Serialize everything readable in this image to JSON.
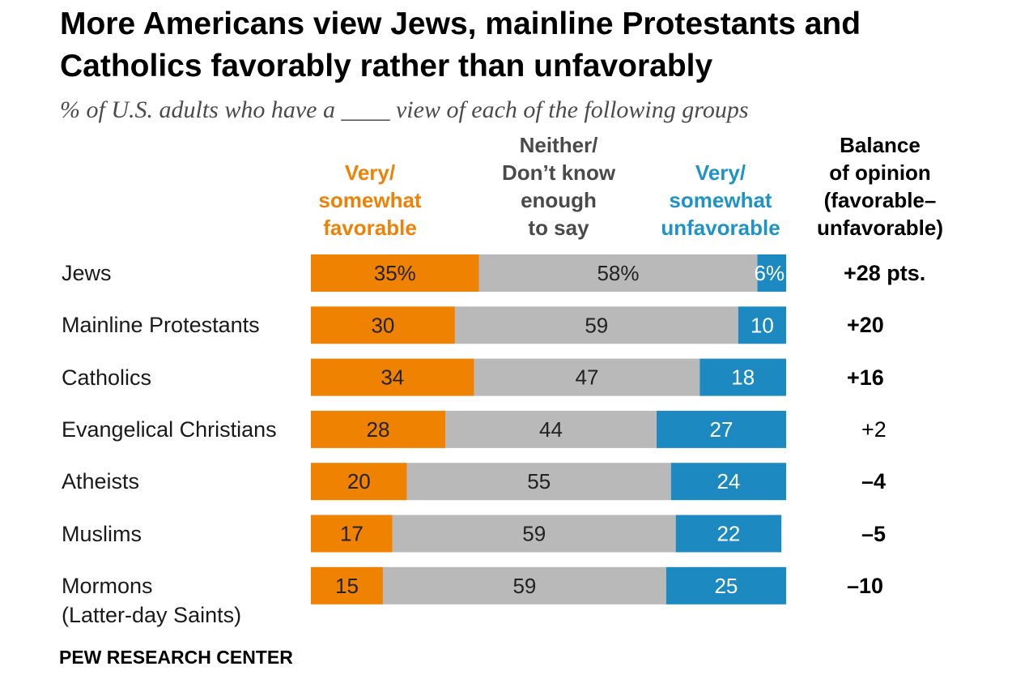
{
  "title": "More Americans view Jews, mainline Protestants and Catholics favorably rather than unfavorably",
  "subtitle": "% of U.S. adults who have a ____ view of each of the following groups",
  "footer": "PEW RESEARCH CENTER",
  "colors": {
    "favorable": "#ef8200",
    "neither": "#b9b9b9",
    "unfavorable": "#1c8ac1"
  },
  "chart_data": {
    "type": "bar",
    "orientation": "horizontal",
    "stacked": true,
    "categories": [
      "Jews",
      "Mainline Protestants",
      "Catholics",
      "Evangelical Christians",
      "Atheists",
      "Muslims",
      "Mormons\n(Latter-day Saints)"
    ],
    "series": [
      {
        "name": "Very/\nsomewhat\nfavorable",
        "values": [
          35,
          30,
          34,
          28,
          20,
          17,
          15
        ],
        "labels": [
          "35%",
          "30",
          "34",
          "28",
          "20",
          "17",
          "15"
        ]
      },
      {
        "name": "Neither/\nDon’t know\nenough\nto say",
        "values": [
          58,
          59,
          47,
          44,
          55,
          59,
          59
        ],
        "labels": [
          "58%",
          "59",
          "47",
          "44",
          "55",
          "59",
          "59"
        ]
      },
      {
        "name": "Very/\nsomewhat\nunfavorable",
        "values": [
          6,
          10,
          18,
          27,
          24,
          22,
          25
        ],
        "labels": [
          "6%",
          "10",
          "18",
          "27",
          "24",
          "22",
          "25"
        ]
      }
    ],
    "balance": {
      "header": "Balance\nof opinion\n(favorable–\nunfavorable)",
      "values": [
        "+28 pts.",
        "+20",
        "+16",
        "+2",
        "–4",
        "–5",
        "–10"
      ],
      "bold": [
        true,
        true,
        true,
        false,
        true,
        true,
        true
      ]
    },
    "xlim": [
      0,
      100
    ]
  }
}
